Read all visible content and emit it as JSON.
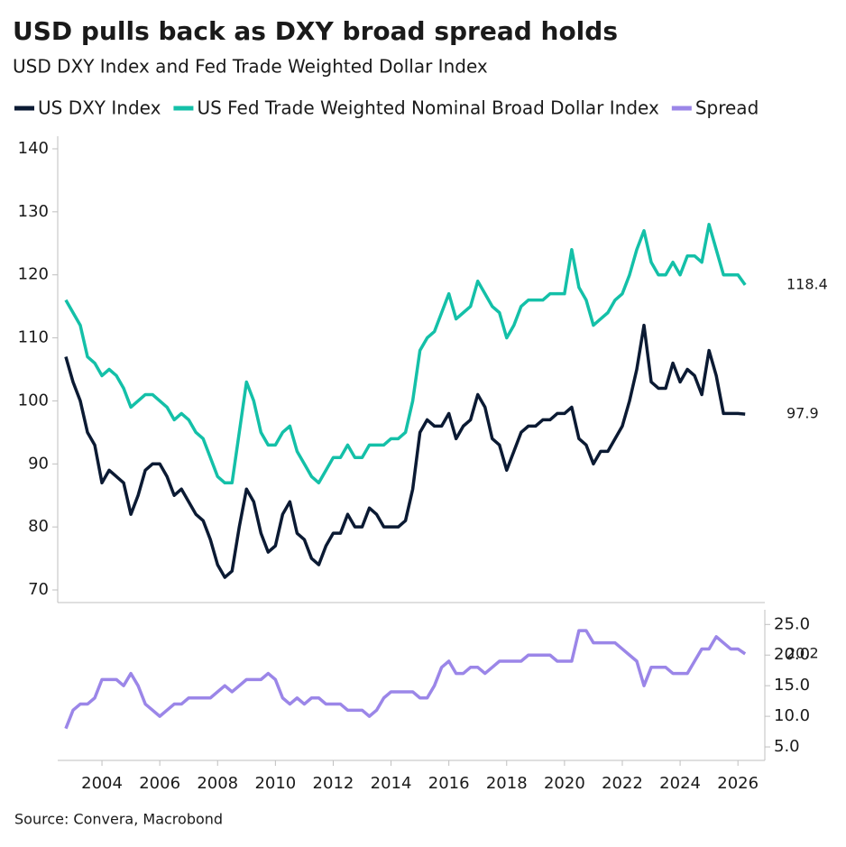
{
  "chart_data": {
    "type": "line",
    "title": "USD pulls back as DXY broad spread holds",
    "subtitle": "USD DXY Index and Fed Trade Weighted Dollar Index",
    "source": "Source: Convera, Macrobond",
    "x": [
      2002.75,
      2003,
      2003.25,
      2003.5,
      2003.75,
      2004,
      2004.25,
      2004.5,
      2004.75,
      2005,
      2005.25,
      2005.5,
      2005.75,
      2006,
      2006.25,
      2006.5,
      2006.75,
      2007,
      2007.25,
      2007.5,
      2007.75,
      2008,
      2008.25,
      2008.5,
      2008.75,
      2009,
      2009.25,
      2009.5,
      2009.75,
      2010,
      2010.25,
      2010.5,
      2010.75,
      2011,
      2011.25,
      2011.5,
      2011.75,
      2012,
      2012.25,
      2012.5,
      2012.75,
      2013,
      2013.25,
      2013.5,
      2013.75,
      2014,
      2014.25,
      2014.5,
      2014.75,
      2015,
      2015.25,
      2015.5,
      2015.75,
      2016,
      2016.25,
      2016.5,
      2016.75,
      2017,
      2017.25,
      2017.5,
      2017.75,
      2018,
      2018.25,
      2018.5,
      2018.75,
      2019,
      2019.25,
      2019.5,
      2019.75,
      2020,
      2020.25,
      2020.5,
      2020.75,
      2021,
      2021.25,
      2021.5,
      2021.75,
      2022,
      2022.25,
      2022.5,
      2022.75,
      2023,
      2023.25,
      2023.5,
      2023.75,
      2024,
      2024.25,
      2024.5,
      2024.75,
      2025,
      2025.25,
      2025.5,
      2025.75,
      2026,
      2026.25
    ],
    "series": [
      {
        "name": "US DXY Index",
        "color": "#0b1a33",
        "values": [
          107,
          103,
          100,
          95,
          93,
          87,
          89,
          88,
          87,
          82,
          85,
          89,
          90,
          90,
          88,
          85,
          86,
          84,
          82,
          81,
          78,
          74,
          72,
          73,
          80,
          86,
          84,
          79,
          76,
          77,
          82,
          84,
          79,
          78,
          75,
          74,
          77,
          79,
          79,
          82,
          80,
          80,
          83,
          82,
          80,
          80,
          80,
          81,
          86,
          95,
          97,
          96,
          96,
          98,
          94,
          96,
          97,
          101,
          99,
          94,
          93,
          89,
          92,
          95,
          96,
          96,
          97,
          97,
          98,
          98,
          99,
          94,
          93,
          90,
          92,
          92,
          94,
          96,
          100,
          105,
          112,
          103,
          102,
          102,
          106,
          103,
          105,
          104,
          101,
          108,
          104,
          98,
          98,
          98,
          97.9
        ]
      },
      {
        "name": "US Fed Trade Weighted Nominal Broad Dollar Index",
        "color": "#14c0a8",
        "values": [
          116,
          114,
          112,
          107,
          106,
          104,
          105,
          104,
          102,
          99,
          100,
          101,
          101,
          100,
          99,
          97,
          98,
          97,
          95,
          94,
          91,
          88,
          87,
          87,
          95,
          103,
          100,
          95,
          93,
          93,
          95,
          96,
          92,
          90,
          88,
          87,
          89,
          91,
          91,
          93,
          91,
          91,
          93,
          93,
          93,
          94,
          94,
          95,
          100,
          108,
          110,
          111,
          114,
          117,
          113,
          114,
          115,
          119,
          117,
          115,
          114,
          110,
          112,
          115,
          116,
          116,
          116,
          117,
          117,
          117,
          124,
          118,
          116,
          112,
          113,
          114,
          116,
          117,
          120,
          124,
          127,
          122,
          120,
          120,
          122,
          120,
          123,
          123,
          122,
          128,
          124,
          120,
          120,
          120,
          118.4
        ]
      },
      {
        "name": "Spread",
        "color": "#9b86e8",
        "axis": "y2",
        "values": [
          8,
          11,
          12,
          12,
          13,
          16,
          16,
          16,
          15,
          17,
          15,
          12,
          11,
          10,
          11,
          12,
          12,
          13,
          13,
          13,
          13,
          14,
          15,
          14,
          15,
          16,
          16,
          16,
          17,
          16,
          13,
          12,
          13,
          12,
          13,
          13,
          12,
          12,
          12,
          11,
          11,
          11,
          10,
          11,
          13,
          14,
          14,
          14,
          14,
          13,
          13,
          15,
          18,
          19,
          17,
          17,
          18,
          18,
          17,
          18,
          19,
          19,
          19,
          19,
          20,
          20,
          20,
          20,
          19,
          19,
          19,
          24,
          24,
          22,
          22,
          22,
          22,
          21,
          20,
          19,
          15,
          18,
          18,
          18,
          17,
          17,
          17,
          19,
          21,
          21,
          23,
          22,
          21,
          21,
          20.2
        ]
      }
    ],
    "xlim": [
      2002.47,
      2026.93
    ],
    "xticks": [
      2004,
      2006,
      2008,
      2010,
      2012,
      2014,
      2016,
      2018,
      2020,
      2022,
      2024,
      2026
    ],
    "ylim": [
      68,
      142
    ],
    "yticks": [
      70,
      80,
      90,
      100,
      110,
      120,
      130,
      140
    ],
    "y2lim": [
      2.8,
      27.4
    ],
    "y2ticks": [
      {
        "value": 5,
        "label": "5.0"
      },
      {
        "value": 10,
        "label": "10.0"
      },
      {
        "value": 15,
        "label": "15.0"
      },
      {
        "value": 20,
        "label": "20.0"
      },
      {
        "value": 25,
        "label": "25.0"
      }
    ],
    "grid": false
  }
}
